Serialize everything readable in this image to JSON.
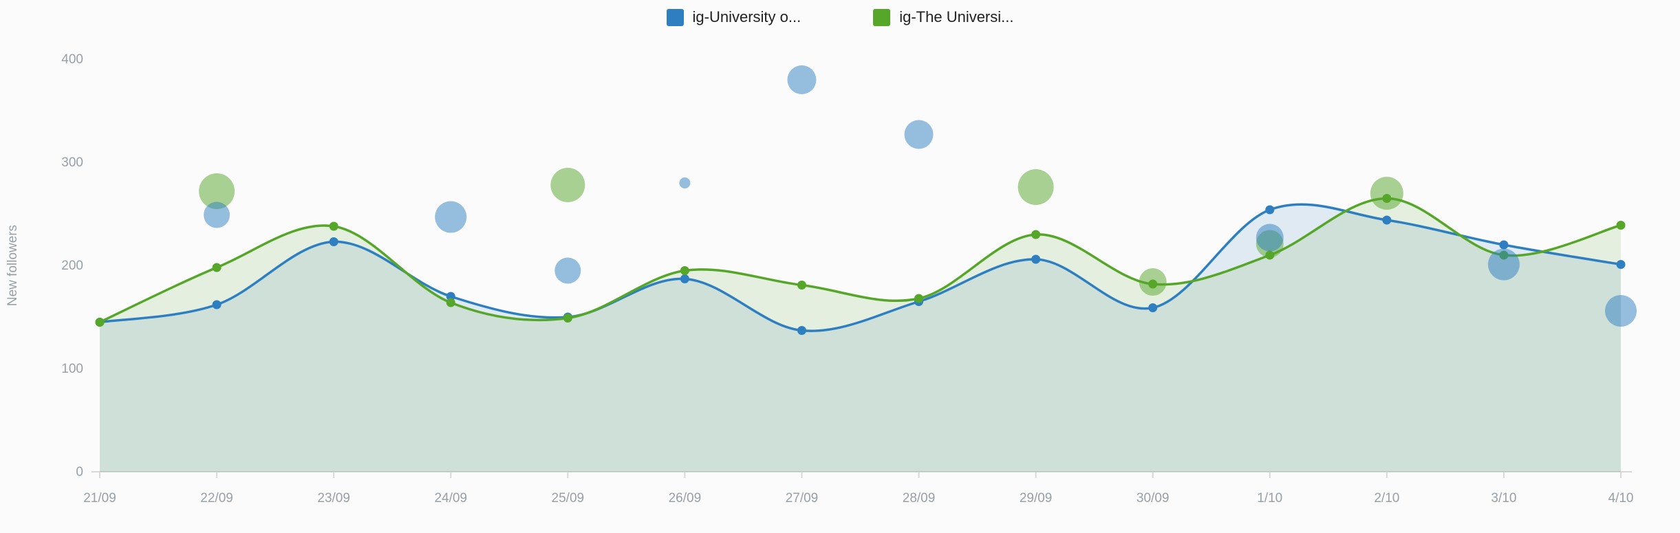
{
  "legend": {
    "items": [
      {
        "label": "ig-University o...",
        "color": "#2d7fc1"
      },
      {
        "label": "ig-The Universi...",
        "color": "#55a629"
      }
    ]
  },
  "chart_data": {
    "type": "area",
    "subtype": "smoothed area lines with bubble overlay",
    "title": "",
    "xlabel": "",
    "ylabel": "New followers",
    "ylim": [
      0,
      400
    ],
    "yticks": [
      0,
      100,
      200,
      300,
      400
    ],
    "grid": false,
    "legend_position": "top-center",
    "categories": [
      "21/09",
      "22/09",
      "23/09",
      "24/09",
      "25/09",
      "26/09",
      "27/09",
      "28/09",
      "29/09",
      "30/09",
      "1/10",
      "2/10",
      "3/10",
      "4/10"
    ],
    "series": [
      {
        "name": "ig-University o...",
        "color": "#2d7fc1",
        "fill": "rgba(45,127,193,0.13)",
        "values": [
          145,
          162,
          223,
          170,
          150,
          187,
          137,
          165,
          206,
          159,
          254,
          244,
          220,
          201
        ],
        "bubbles": [
          {
            "x": 1,
            "y": 249,
            "r": 19
          },
          {
            "x": 3,
            "y": 247,
            "r": 23
          },
          {
            "x": 4,
            "y": 195,
            "r": 19
          },
          {
            "x": 5,
            "y": 280,
            "r": 8
          },
          {
            "x": 6,
            "y": 380,
            "r": 21
          },
          {
            "x": 7,
            "y": 327,
            "r": 21
          },
          {
            "x": 10,
            "y": 227,
            "r": 20
          },
          {
            "x": 12,
            "y": 201,
            "r": 23
          },
          {
            "x": 13,
            "y": 156,
            "r": 23
          }
        ]
      },
      {
        "name": "ig-The Universi...",
        "color": "#55a629",
        "fill": "rgba(85,166,41,0.13)",
        "values": [
          145,
          198,
          238,
          164,
          149,
          195,
          181,
          168,
          230,
          182,
          210,
          265,
          210,
          239
        ],
        "bubbles": [
          {
            "x": 1,
            "y": 272,
            "r": 26
          },
          {
            "x": 4,
            "y": 278,
            "r": 25
          },
          {
            "x": 8,
            "y": 276,
            "r": 26
          },
          {
            "x": 9,
            "y": 184,
            "r": 20
          },
          {
            "x": 10,
            "y": 221,
            "r": 20
          },
          {
            "x": 11,
            "y": 270,
            "r": 24
          }
        ]
      }
    ]
  }
}
